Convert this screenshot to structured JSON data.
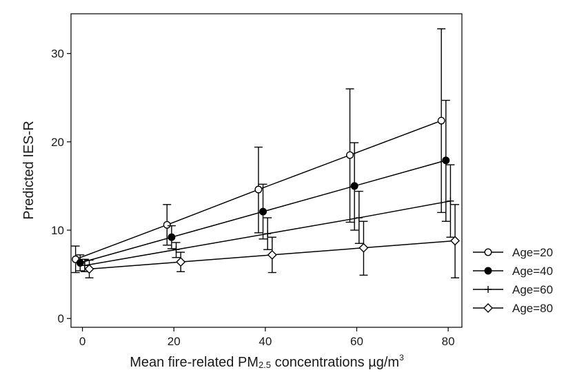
{
  "chart_data": {
    "type": "line",
    "xlabel": "Mean fire-related PM",
    "xlabel_sub": "2.5",
    "xlabel_suffix": " concentrations µg/m",
    "xlabel_sup": "3",
    "ylabel": "Predicted IES-R",
    "x_ticks": [
      0,
      20,
      40,
      60,
      80
    ],
    "y_ticks": [
      0,
      10,
      20,
      30
    ],
    "xlim": [
      -2.5,
      83
    ],
    "ylim": [
      -1,
      34.5
    ],
    "grid": false,
    "legend_position": "right",
    "series": [
      {
        "name": "Age=20",
        "marker": "circle-open",
        "x": [
          -1.5,
          18.5,
          38.5,
          58.5,
          78.5
        ],
        "y": [
          6.7,
          10.6,
          14.6,
          18.5,
          22.4
        ],
        "err_low": [
          5.2,
          8.3,
          9.7,
          10.9,
          12.0
        ],
        "err_high": [
          8.2,
          12.9,
          19.4,
          26.0,
          32.8
        ]
      },
      {
        "name": "Age=40",
        "marker": "circle-filled",
        "x": [
          -0.5,
          19.5,
          39.5,
          59.5,
          79.5
        ],
        "y": [
          6.3,
          9.2,
          12.1,
          15.0,
          17.9
        ],
        "err_low": [
          5.4,
          7.9,
          9.0,
          10.0,
          11.0
        ],
        "err_high": [
          7.2,
          10.5,
          15.2,
          19.9,
          24.7
        ]
      },
      {
        "name": "Age=60",
        "marker": "plus",
        "x": [
          0.5,
          20.5,
          40.5,
          60.5,
          80.5
        ],
        "y": [
          6.0,
          7.8,
          9.6,
          11.4,
          13.3
        ],
        "err_low": [
          5.3,
          6.9,
          7.8,
          8.5,
          9.2
        ],
        "err_high": [
          6.7,
          8.6,
          11.4,
          14.4,
          17.4
        ]
      },
      {
        "name": "Age=80",
        "marker": "diamond-open",
        "x": [
          1.5,
          21.5,
          41.5,
          61.5,
          81.5
        ],
        "y": [
          5.6,
          6.4,
          7.2,
          8.0,
          8.8
        ],
        "err_low": [
          4.6,
          5.3,
          5.2,
          4.9,
          4.6
        ],
        "err_high": [
          6.6,
          7.5,
          9.2,
          11.0,
          12.9
        ]
      }
    ]
  }
}
